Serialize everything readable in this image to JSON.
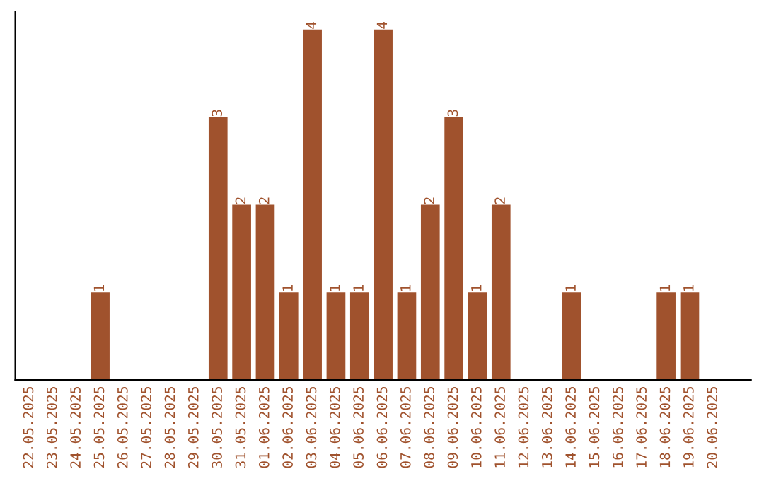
{
  "chart_data": {
    "type": "bar",
    "categories": [
      "22.05.2025",
      "23.05.2025",
      "24.05.2025",
      "25.05.2025",
      "26.05.2025",
      "27.05.2025",
      "28.05.2025",
      "29.05.2025",
      "30.05.2025",
      "31.05.2025",
      "01.06.2025",
      "02.06.2025",
      "03.06.2025",
      "04.06.2025",
      "05.06.2025",
      "06.06.2025",
      "07.06.2025",
      "08.06.2025",
      "09.06.2025",
      "10.06.2025",
      "11.06.2025",
      "12.06.2025",
      "13.06.2025",
      "14.06.2025",
      "15.06.2025",
      "16.06.2025",
      "17.06.2025",
      "18.06.2025",
      "19.06.2025",
      "20.06.2025"
    ],
    "values": [
      0,
      0,
      0,
      1,
      0,
      0,
      0,
      0,
      3,
      2,
      2,
      1,
      4,
      1,
      1,
      4,
      1,
      2,
      3,
      1,
      2,
      0,
      0,
      1,
      0,
      0,
      0,
      1,
      1,
      0
    ],
    "value_labels": [
      null,
      null,
      null,
      "1",
      null,
      null,
      null,
      null,
      "3",
      "2",
      "2",
      "1",
      "4",
      "1",
      "1",
      "4",
      "1",
      "2",
      "3",
      "1",
      "2",
      null,
      null,
      "1",
      null,
      null,
      null,
      "1",
      "1",
      null
    ],
    "color": "#a0522d",
    "tick_labels": "x",
    "grid": false,
    "legend": false
  }
}
